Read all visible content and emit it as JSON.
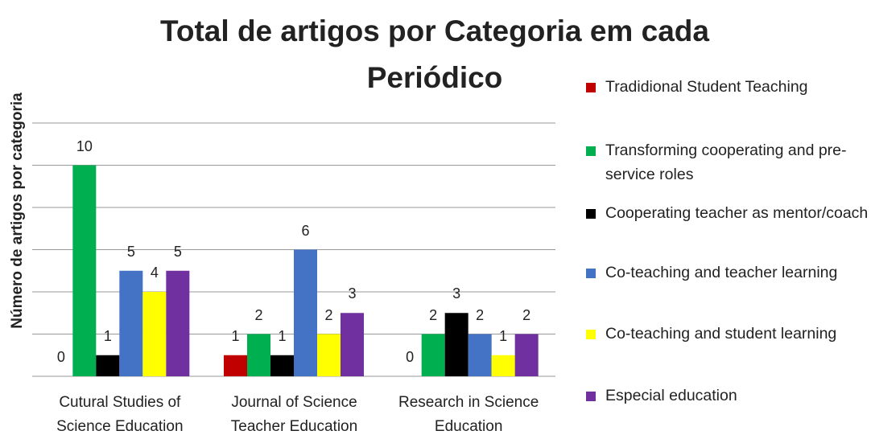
{
  "chart_data": {
    "type": "bar",
    "title": "Total de artigos por Categoria em cada Periódico",
    "y_label": "Número de artigos por categoria",
    "categories": [
      "Cutural Studies of Science Education",
      "Journal of Science Teacher Education",
      "Research in Science Education"
    ],
    "series": [
      {
        "name": "Tradidional Student Teaching",
        "color": "#c00000",
        "values": [
          0,
          1,
          0
        ]
      },
      {
        "name": "Transforming cooperating and pre-service roles",
        "color": "#00b050",
        "values": [
          10,
          2,
          2
        ]
      },
      {
        "name": "Cooperating teacher as mentor/coach",
        "color": "#000000",
        "values": [
          1,
          1,
          3
        ]
      },
      {
        "name": "Co-teaching and teacher learning",
        "color": "#4472c4",
        "values": [
          5,
          6,
          2
        ]
      },
      {
        "name": "Co-teaching and student learning",
        "color": "#ffff00",
        "values": [
          4,
          2,
          1
        ]
      },
      {
        "name": "Especial education",
        "color": "#7030a0",
        "values": [
          5,
          3,
          2
        ]
      }
    ],
    "ylim": [
      0,
      12
    ],
    "yticks": [
      0,
      2,
      4,
      6,
      8,
      10,
      12
    ],
    "grid": true,
    "legend": "right"
  }
}
